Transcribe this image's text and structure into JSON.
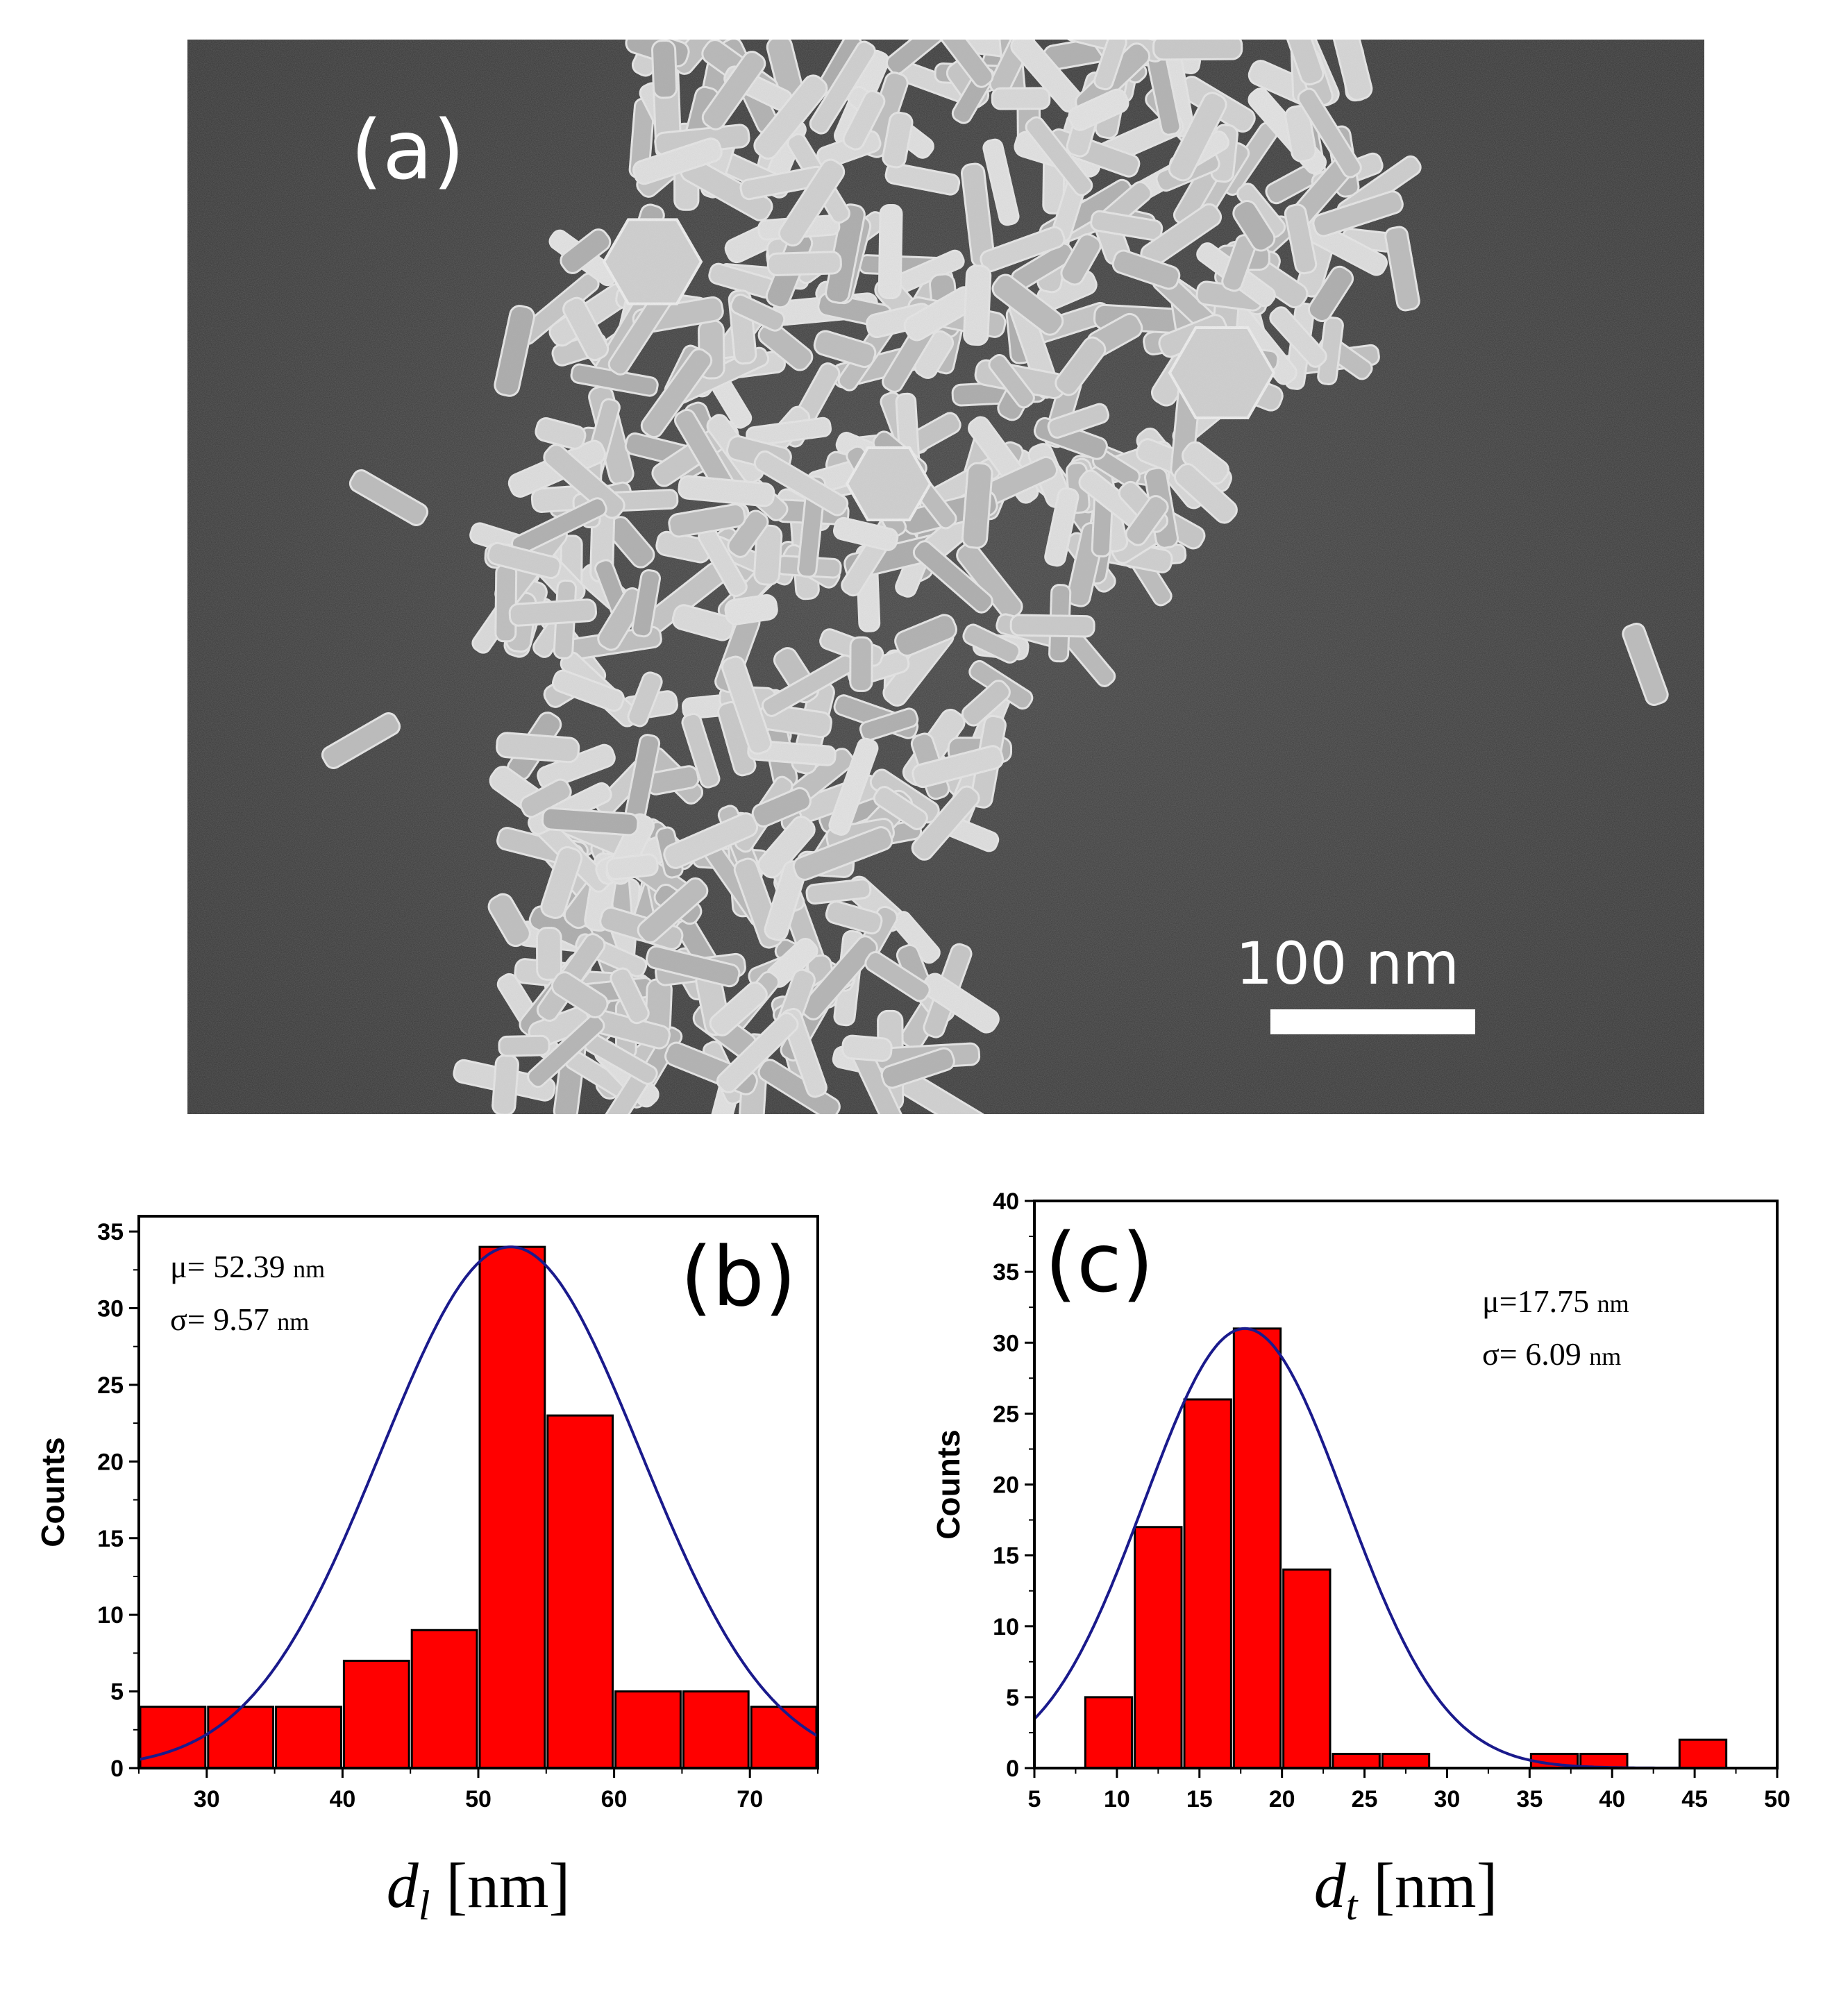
{
  "panels": {
    "a": {
      "label": "(a)",
      "scale_bar": {
        "label": "100 nm"
      }
    }
  },
  "chart_data": [
    {
      "panel": "(b)",
      "type": "bar",
      "xlabel_main": "d",
      "xlabel_sub": "l",
      "xlabel_unit": " [nm]",
      "ylabel": "Counts",
      "xlim": [
        25,
        75
      ],
      "ylim": [
        0,
        36
      ],
      "xticks": [
        30,
        40,
        50,
        60,
        70
      ],
      "yticks": [
        0,
        5,
        10,
        15,
        20,
        25,
        30,
        35
      ],
      "bins": [
        [
          25,
          30
        ],
        [
          30,
          35
        ],
        [
          35,
          40
        ],
        [
          40,
          45
        ],
        [
          45,
          50
        ],
        [
          50,
          55
        ],
        [
          55,
          60
        ],
        [
          60,
          65
        ],
        [
          65,
          70
        ],
        [
          70,
          75
        ]
      ],
      "values": [
        4,
        4,
        4,
        7,
        9,
        34,
        23,
        5,
        5,
        4
      ],
      "bar_color": "#ff0000",
      "fit": {
        "type": "gaussian",
        "color": "#1a1a8c",
        "mu": 52.39,
        "sigma": 9.57,
        "peak": 34
      },
      "annotations": {
        "mu_text": "μ= 52.39",
        "sigma_text": "σ= 9.57",
        "unit": "nm"
      },
      "grid": false
    },
    {
      "panel": "(c)",
      "type": "bar",
      "xlabel_main": "d",
      "xlabel_sub": "t",
      "xlabel_unit": " [nm]",
      "ylabel": "Counts",
      "xlim": [
        5,
        50
      ],
      "ylim": [
        0,
        40
      ],
      "xticks": [
        5,
        10,
        15,
        20,
        25,
        30,
        35,
        40,
        45,
        50
      ],
      "yticks": [
        0,
        5,
        10,
        15,
        20,
        25,
        30,
        35,
        40
      ],
      "bins": [
        [
          8,
          11
        ],
        [
          11,
          14
        ],
        [
          14,
          17
        ],
        [
          17,
          20
        ],
        [
          20,
          23
        ],
        [
          23,
          26
        ],
        [
          26,
          29
        ],
        [
          29,
          32
        ],
        [
          32,
          35
        ],
        [
          35,
          38
        ],
        [
          38,
          41
        ],
        [
          41,
          44
        ],
        [
          44,
          47
        ]
      ],
      "values": [
        5,
        17,
        26,
        31,
        14,
        1,
        1,
        0,
        0,
        1,
        1,
        0,
        2
      ],
      "bar_color": "#ff0000",
      "fit": {
        "type": "gaussian",
        "color": "#1a1a8c",
        "mu": 17.75,
        "sigma": 6.09,
        "peak": 31
      },
      "annotations": {
        "mu_text": "μ=17.75",
        "sigma_text": "σ= 6.09",
        "unit": "nm"
      },
      "grid": false
    }
  ]
}
